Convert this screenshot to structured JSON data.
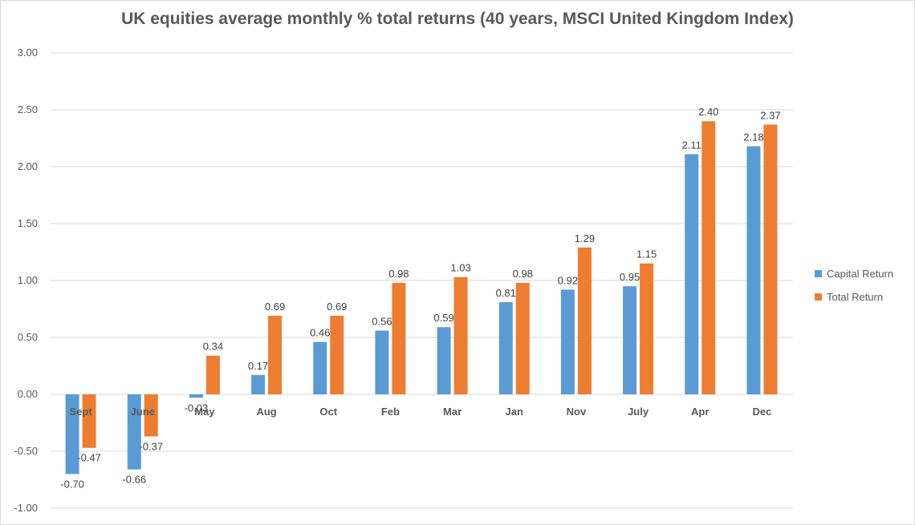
{
  "chart_data": {
    "type": "bar",
    "title": "UK equities average monthly % total returns (40 years, MSCI United Kingdom Index)",
    "xlabel": "",
    "ylabel": "",
    "ylim": [
      -1.0,
      3.0
    ],
    "yticks": [
      "-1.00",
      "-0.50",
      "0.00",
      "0.50",
      "1.00",
      "1.50",
      "2.00",
      "2.50",
      "3.00"
    ],
    "categories": [
      "Sept",
      "June",
      "May",
      "Aug",
      "Oct",
      "Feb",
      "Mar",
      "Jan",
      "Nov",
      "July",
      "Apr",
      "Dec"
    ],
    "series": [
      {
        "name": "Capital Return",
        "color": "#5b9bd5",
        "values": [
          -0.7,
          -0.66,
          -0.03,
          0.17,
          0.46,
          0.56,
          0.59,
          0.81,
          0.92,
          0.95,
          2.11,
          2.18
        ],
        "labels": [
          "-0.70",
          "-0.66",
          "-0.03",
          "0.17",
          "0.46",
          "0.56",
          "0.59",
          "0.81",
          "0.92",
          "0.95",
          "2.11",
          "2.18"
        ]
      },
      {
        "name": "Total Return",
        "color": "#ed7d31",
        "values": [
          -0.47,
          -0.37,
          0.34,
          0.69,
          0.69,
          0.98,
          1.03,
          0.98,
          1.29,
          1.15,
          2.4,
          2.37
        ],
        "labels": [
          "-0.47",
          "-0.37",
          "0.34",
          "0.69",
          "0.69",
          "0.98",
          "1.03",
          "0.98",
          "1.29",
          "1.15",
          "2.40",
          "2.37"
        ]
      }
    ],
    "grid": true,
    "legend": "right"
  }
}
